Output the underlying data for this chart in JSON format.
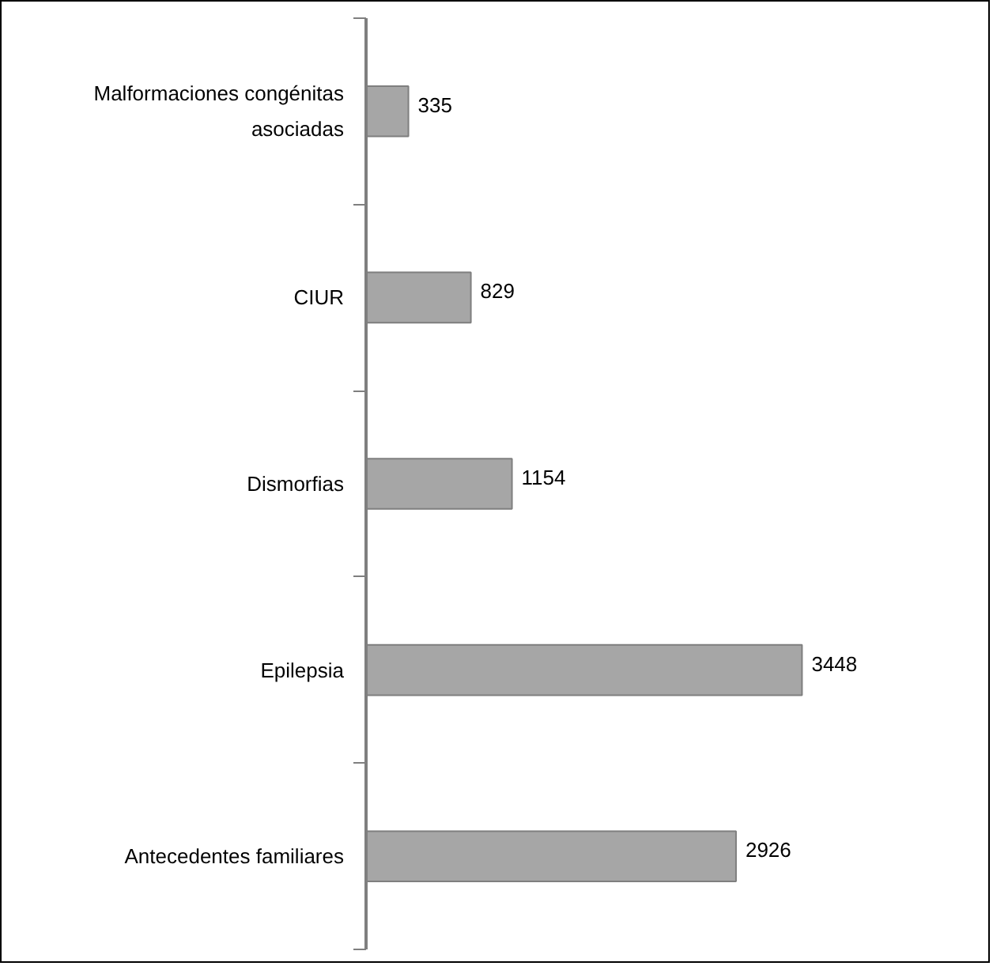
{
  "chart_data": {
    "type": "bar",
    "orientation": "horizontal",
    "categories": [
      "Malformaciones congénitas asociadas",
      "CIUR",
      "Dismorfias",
      "Epilepsia",
      "Antecedentes familiares"
    ],
    "values": [
      335,
      829,
      1154,
      3448,
      2926
    ],
    "color": "#a6a6a6",
    "data_labels": true,
    "grid": false,
    "tick_labels": "y"
  }
}
